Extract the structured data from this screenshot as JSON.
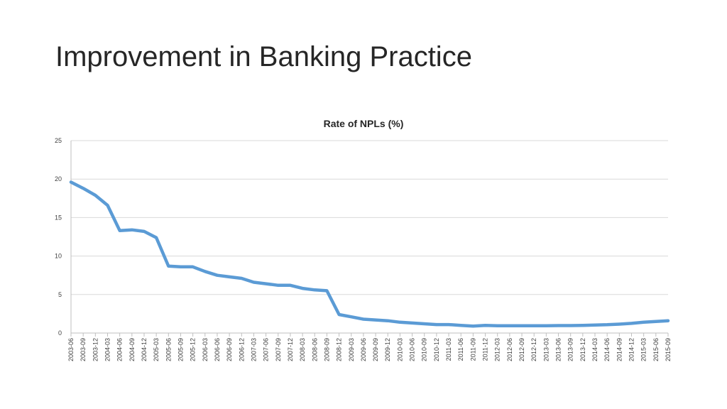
{
  "slide": {
    "title": "Improvement in Banking Practice"
  },
  "chart_data": {
    "type": "line",
    "title": "Rate of NPLs (%)",
    "xlabel": "",
    "ylabel": "",
    "ylim": [
      0,
      25
    ],
    "yticks": [
      0,
      5,
      10,
      15,
      20,
      25
    ],
    "grid": true,
    "legend": "none",
    "line_color": "#5B9BD5",
    "categories": [
      "2003-06",
      "2003-09",
      "2003-12",
      "2004-03",
      "2004-06",
      "2004-09",
      "2004-12",
      "2005-03",
      "2005-06",
      "2005-09",
      "2005-12",
      "2006-03",
      "2006-06",
      "2006-09",
      "2006-12",
      "2007-03",
      "2007-06",
      "2007-09",
      "2007-12",
      "2008-03",
      "2008-06",
      "2008-09",
      "2008-12",
      "2009-03",
      "2009-06",
      "2009-09",
      "2009-12",
      "2010-03",
      "2010-06",
      "2010-09",
      "2010-12",
      "2011-03",
      "2011-06",
      "2011-09",
      "2011-12",
      "2012-03",
      "2012-06",
      "2012-09",
      "2012-12",
      "2013-03",
      "2013-06",
      "2013-09",
      "2013-12",
      "2014-03",
      "2014-06",
      "2014-09",
      "2014-12",
      "2015-03",
      "2015-06",
      "2015-09"
    ],
    "series": [
      {
        "values": [
          19.6,
          18.8,
          17.9,
          16.6,
          13.3,
          13.4,
          13.2,
          12.4,
          8.7,
          8.6,
          8.6,
          8.0,
          7.5,
          7.3,
          7.1,
          6.6,
          6.4,
          6.2,
          6.2,
          5.8,
          5.6,
          5.5,
          2.4,
          2.1,
          1.8,
          1.7,
          1.6,
          1.4,
          1.3,
          1.2,
          1.1,
          1.1,
          1.0,
          0.9,
          1.0,
          0.95,
          0.95,
          0.95,
          0.95,
          0.95,
          0.97,
          0.97,
          1.0,
          1.04,
          1.08,
          1.15,
          1.25,
          1.4,
          1.5,
          1.6
        ]
      }
    ]
  }
}
